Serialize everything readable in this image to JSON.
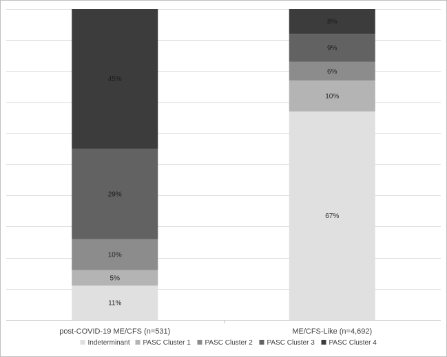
{
  "chart_data": {
    "type": "bar",
    "stacked": true,
    "normalized": true,
    "title": "",
    "xlabel": "",
    "ylabel": "",
    "ylim": [
      0,
      100
    ],
    "grid": true,
    "legend_position": "bottom",
    "categories": [
      "post-COVID-19 ME/CFS (n=531)",
      "ME/CFS-Like (n=4,692)"
    ],
    "series": [
      {
        "name": "Indeterminant",
        "values": [
          11,
          67
        ],
        "labels": [
          "11%",
          "67%"
        ],
        "color": "#e0e0e0"
      },
      {
        "name": "PASC Cluster 1",
        "values": [
          5,
          10
        ],
        "labels": [
          "5%",
          "10%"
        ],
        "color": "#b4b4b4"
      },
      {
        "name": "PASC Cluster 2",
        "values": [
          10,
          6
        ],
        "labels": [
          "10%",
          "6%"
        ],
        "color": "#8c8c8c"
      },
      {
        "name": "PASC Cluster 3",
        "values": [
          29,
          9
        ],
        "labels": [
          "29%",
          "9%"
        ],
        "color": "#626262"
      },
      {
        "name": "PASC Cluster 4",
        "values": [
          45,
          8
        ],
        "labels": [
          "45%",
          "8%"
        ],
        "color": "#3c3c3c"
      }
    ]
  }
}
